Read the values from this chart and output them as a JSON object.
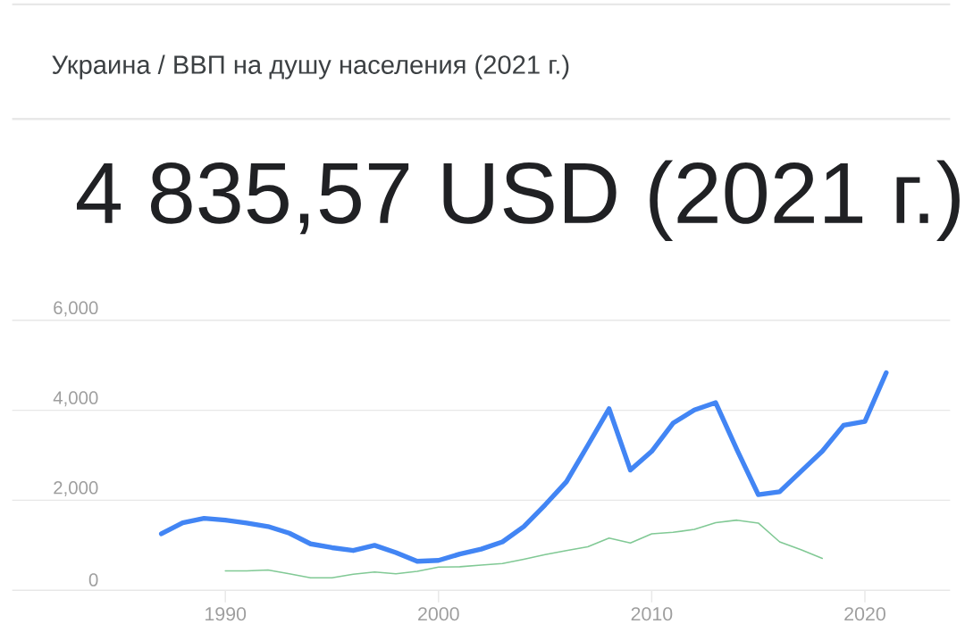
{
  "chart_data": {
    "type": "line",
    "title": "Украина / ВВП на душу населения (2021 г.)",
    "subtitle": "4 835,57 USD (2021 г.)",
    "series": [
      {
        "color": "#4285f4",
        "x": [
          1987,
          1988,
          1989,
          1990,
          1991,
          1992,
          1993,
          1994,
          1995,
          1996,
          1997,
          1998,
          1999,
          2000,
          2001,
          2002,
          2003,
          2004,
          2005,
          2006,
          2007,
          2008,
          2009,
          2010,
          2011,
          2012,
          2013,
          2014,
          2015,
          2016,
          2017,
          2018,
          2019,
          2020,
          2021
        ],
        "values": [
          1255,
          1500,
          1597,
          1558,
          1493,
          1416,
          1268,
          1030,
          946,
          882,
          998,
          836,
          643,
          662,
          805,
          913,
          1075,
          1415,
          1898,
          2413,
          3218,
          4035,
          2670,
          3089,
          3713,
          4009,
          4170,
          3121,
          2124,
          2188,
          2639,
          3089,
          3668,
          3751,
          4836
        ]
      },
      {
        "color": "#81c995",
        "x": [
          1990,
          1991,
          1992,
          1993,
          1994,
          1995,
          1996,
          1997,
          1998,
          1999,
          2000,
          2001,
          2002,
          2003,
          2004,
          2005,
          2006,
          2007,
          2008,
          2009,
          2010,
          2011,
          2012,
          2013,
          2014,
          2015,
          2016,
          2017,
          2018
        ],
        "values": [
          431,
          431,
          450,
          367,
          277,
          274,
          354,
          405,
          367,
          418,
          515,
          521,
          560,
          592,
          689,
          791,
          882,
          965,
          1158,
          1049,
          1255,
          1287,
          1351,
          1500,
          1558,
          1493,
          1075,
          901,
          708
        ]
      }
    ],
    "xlim": [
      1980,
      2024
    ],
    "ylim": [
      0,
      6000
    ],
    "xticks": [
      1990,
      2000,
      2010,
      2020
    ],
    "yticks": [
      0,
      {
        "value": 2000,
        "label": "2,000"
      },
      {
        "value": 4000,
        "label": "4,000"
      },
      {
        "value": 6000,
        "label": "6,000"
      }
    ],
    "grid": "y"
  }
}
